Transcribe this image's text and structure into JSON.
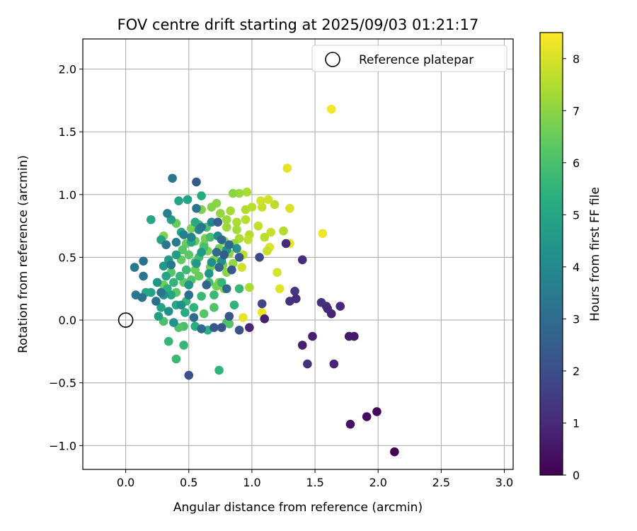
{
  "chart_data": {
    "type": "scatter",
    "title": "FOV centre drift starting at 2025/09/03 01:21:17",
    "xlabel": "Angular distance from reference (arcmin)",
    "ylabel": "Rotation from reference (arcmin)",
    "xlim": [
      -0.34,
      3.07
    ],
    "ylim": [
      -1.19,
      2.24
    ],
    "xticks": [
      "0.0",
      "0.5",
      "1.0",
      "1.5",
      "2.0",
      "2.5",
      "3.0"
    ],
    "yticks": [
      "−1.0",
      "−0.5",
      "0.0",
      "0.5",
      "1.0",
      "1.5",
      "2.0"
    ],
    "grid": true,
    "legend": {
      "position": "top-right",
      "entries": [
        "Reference platepar"
      ]
    },
    "colorbar": {
      "label": "Hours from first FF file",
      "range": [
        0,
        8.5
      ],
      "ticks": [
        "0",
        "1",
        "2",
        "3",
        "4",
        "5",
        "6",
        "7",
        "8"
      ],
      "colormap": "viridis"
    },
    "reference_point": {
      "x": 0.0,
      "y": 0.0
    },
    "points": [
      [
        1.63,
        1.68,
        8.4
      ],
      [
        1.28,
        1.21,
        8.2
      ],
      [
        1.56,
        0.69,
        8.3
      ],
      [
        1.22,
        0.25,
        8.1
      ],
      [
        1.2,
        0.38,
        8.0
      ],
      [
        1.14,
        0.58,
        8.1
      ],
      [
        1.3,
        0.61,
        8.2
      ],
      [
        1.3,
        0.89,
        8.0
      ],
      [
        0.93,
        0.02,
        8.2
      ],
      [
        1.08,
        0.06,
        8.3
      ],
      [
        1.18,
        0.92,
        7.6
      ],
      [
        1.25,
        0.71,
        7.5
      ],
      [
        1.13,
        0.96,
        7.9
      ],
      [
        1.07,
        0.95,
        7.9
      ],
      [
        0.96,
        1.02,
        7.4
      ],
      [
        0.9,
        1.01,
        7.2
      ],
      [
        0.85,
        1.01,
        7.0
      ],
      [
        1.0,
        0.9,
        7.6
      ],
      [
        1.08,
        0.9,
        7.8
      ],
      [
        0.95,
        0.88,
        7.5
      ],
      [
        0.83,
        0.87,
        7.3
      ],
      [
        0.72,
        0.93,
        7.0
      ],
      [
        0.68,
        0.9,
        6.9
      ],
      [
        0.6,
        0.88,
        6.8
      ],
      [
        0.75,
        0.85,
        7.1
      ],
      [
        0.8,
        0.8,
        7.2
      ],
      [
        0.88,
        0.78,
        7.4
      ],
      [
        0.95,
        0.8,
        7.6
      ],
      [
        1.05,
        0.75,
        7.7
      ],
      [
        1.15,
        0.7,
        7.8
      ],
      [
        1.1,
        0.66,
        7.6
      ],
      [
        0.98,
        0.68,
        7.5
      ],
      [
        0.9,
        0.65,
        7.4
      ],
      [
        0.8,
        0.74,
        7.2
      ],
      [
        0.88,
        0.72,
        7.3
      ],
      [
        0.93,
        0.52,
        7.6
      ],
      [
        0.97,
        0.64,
        7.7
      ],
      [
        1.12,
        0.55,
        7.8
      ],
      [
        0.92,
        0.42,
        7.9
      ],
      [
        0.98,
        0.26,
        7.4
      ],
      [
        0.85,
        0.45,
        7.1
      ],
      [
        0.8,
        0.38,
        7.0
      ],
      [
        0.78,
        0.25,
        6.9
      ],
      [
        0.74,
        0.3,
        7.0
      ],
      [
        0.7,
        0.48,
        6.9
      ],
      [
        0.65,
        0.55,
        6.8
      ],
      [
        0.63,
        0.65,
        6.7
      ],
      [
        0.58,
        0.72,
        6.6
      ],
      [
        0.52,
        0.73,
        6.7
      ],
      [
        0.48,
        0.61,
        6.5
      ],
      [
        0.44,
        0.48,
        6.4
      ],
      [
        0.4,
        0.77,
        6.5
      ],
      [
        0.36,
        0.38,
        6.2
      ],
      [
        0.3,
        0.67,
        6.8
      ],
      [
        0.3,
        0.28,
        6.6
      ],
      [
        0.4,
        0.22,
        6.3
      ],
      [
        0.46,
        0.3,
        6.4
      ],
      [
        0.55,
        0.4,
        6.6
      ],
      [
        0.58,
        0.35,
        6.5
      ],
      [
        0.62,
        0.6,
        6.6
      ],
      [
        0.67,
        0.42,
        6.6
      ],
      [
        0.72,
        0.27,
        6.7
      ],
      [
        0.77,
        0.44,
        6.8
      ],
      [
        0.82,
        0.53,
        7.0
      ],
      [
        0.86,
        0.61,
        7.1
      ],
      [
        0.78,
        0.63,
        6.9
      ],
      [
        0.74,
        0.57,
        6.7
      ],
      [
        0.55,
        0.63,
        6.5
      ],
      [
        0.5,
        0.52,
        6.3
      ],
      [
        0.45,
        0.56,
        6.2
      ],
      [
        0.52,
        0.32,
        6.1
      ],
      [
        0.62,
        0.05,
        6.2
      ],
      [
        0.7,
        0.1,
        6.1
      ],
      [
        0.8,
        -0.02,
        6.0
      ],
      [
        0.82,
        -0.03,
        6.1
      ],
      [
        0.46,
        -0.05,
        6.0
      ],
      [
        0.42,
        -0.06,
        6.1
      ],
      [
        0.3,
        -0.01,
        6.0
      ],
      [
        0.34,
        -0.17,
        5.6
      ],
      [
        0.4,
        -0.31,
        5.7
      ],
      [
        0.46,
        -0.2,
        5.6
      ],
      [
        0.58,
        0.76,
        5.8
      ],
      [
        0.62,
        0.58,
        5.9
      ],
      [
        0.64,
        0.74,
        6.0
      ],
      [
        0.67,
        0.66,
        5.9
      ],
      [
        0.58,
        0.5,
        5.8
      ],
      [
        0.55,
        0.46,
        5.9
      ],
      [
        0.48,
        0.4,
        5.7
      ],
      [
        0.43,
        0.35,
        5.6
      ],
      [
        0.38,
        0.3,
        5.5
      ],
      [
        0.33,
        0.25,
        5.4
      ],
      [
        0.48,
        0.15,
        5.6
      ],
      [
        0.54,
        0.1,
        5.5
      ],
      [
        0.6,
        0.19,
        5.7
      ],
      [
        0.66,
        0.3,
        5.8
      ],
      [
        0.7,
        0.2,
        5.7
      ],
      [
        0.76,
        0.3,
        5.6
      ],
      [
        0.86,
        0.12,
        5.5
      ],
      [
        0.9,
        0.25,
        5.6
      ],
      [
        0.74,
        -0.4,
        5.5
      ],
      [
        0.65,
        -0.08,
        5.4
      ],
      [
        0.55,
        -0.05,
        5.3
      ],
      [
        0.47,
        0.06,
        5.2
      ],
      [
        0.4,
        0.12,
        5.1
      ],
      [
        0.36,
        0.2,
        5.0
      ],
      [
        0.32,
        0.35,
        5.0
      ],
      [
        0.28,
        0.1,
        4.9
      ],
      [
        0.26,
        0.03,
        4.8
      ],
      [
        0.2,
        0.22,
        4.9
      ],
      [
        0.16,
        0.22,
        5.0
      ],
      [
        0.2,
        0.8,
        5.0
      ],
      [
        0.28,
        0.64,
        4.8
      ],
      [
        0.4,
        0.52,
        4.7
      ],
      [
        0.42,
        0.95,
        4.9
      ],
      [
        0.49,
        0.96,
        5.0
      ],
      [
        0.55,
        0.78,
        5.1
      ],
      [
        0.6,
        0.99,
        5.2
      ],
      [
        0.52,
        0.62,
        5.1
      ],
      [
        0.44,
        0.7,
        4.9
      ],
      [
        0.36,
        0.8,
        4.8
      ],
      [
        0.34,
        0.48,
        4.6
      ],
      [
        0.3,
        0.43,
        4.5
      ],
      [
        0.25,
        0.3,
        4.4
      ],
      [
        0.3,
        0.2,
        4.4
      ],
      [
        0.34,
        0.07,
        4.3
      ],
      [
        0.38,
        -0.02,
        4.2
      ],
      [
        0.44,
        0.12,
        4.3
      ],
      [
        0.5,
        0.28,
        4.4
      ],
      [
        0.56,
        0.45,
        4.5
      ],
      [
        0.6,
        0.54,
        4.5
      ],
      [
        0.66,
        0.37,
        4.4
      ],
      [
        0.68,
        0.46,
        4.3
      ],
      [
        0.76,
        0.47,
        4.2
      ],
      [
        0.8,
        0.56,
        4.3
      ],
      [
        0.88,
        0.57,
        4.2
      ],
      [
        0.73,
        0.67,
        4.0
      ],
      [
        0.68,
        0.78,
        3.9
      ],
      [
        0.58,
        0.72,
        3.8
      ],
      [
        0.52,
        0.66,
        3.7
      ],
      [
        0.46,
        0.68,
        3.6
      ],
      [
        0.4,
        0.62,
        3.5
      ],
      [
        0.33,
        0.85,
        3.6
      ],
      [
        0.37,
        1.13,
        3.4
      ],
      [
        0.56,
        0.89,
        3.2
      ],
      [
        0.6,
        0.74,
        3.3
      ],
      [
        0.36,
        0.44,
        3.4
      ],
      [
        0.32,
        0.6,
        3.3
      ],
      [
        0.28,
        0.22,
        3.2
      ],
      [
        0.24,
        0.15,
        3.1
      ],
      [
        0.14,
        0.47,
        3.2
      ],
      [
        0.14,
        0.35,
        3.3
      ],
      [
        0.07,
        0.42,
        3.4
      ],
      [
        0.08,
        0.2,
        3.3
      ],
      [
        0.13,
        0.18,
        3.2
      ],
      [
        0.5,
        0.2,
        3.1
      ],
      [
        0.54,
        0.02,
        3.0
      ],
      [
        0.6,
        -0.07,
        2.9
      ],
      [
        0.72,
        0.54,
        3.0
      ],
      [
        0.82,
        0.6,
        2.9
      ],
      [
        0.76,
        0.64,
        2.8
      ],
      [
        0.8,
        0.25,
        2.9
      ],
      [
        0.74,
        0.42,
        2.8
      ],
      [
        0.64,
        0.28,
        2.7
      ],
      [
        0.56,
        1.1,
        2.4
      ],
      [
        0.73,
        0.78,
        2.5
      ],
      [
        0.78,
        0.52,
        2.4
      ],
      [
        0.84,
        0.4,
        2.3
      ],
      [
        0.9,
        0.5,
        2.4
      ],
      [
        0.82,
        0.03,
        2.3
      ],
      [
        0.76,
        -0.06,
        2.2
      ],
      [
        0.7,
        -0.06,
        2.3
      ],
      [
        0.5,
        -0.44,
        2.1
      ],
      [
        0.9,
        -0.08,
        2.2
      ],
      [
        1.06,
        0.5,
        1.9
      ],
      [
        1.08,
        0.13,
        1.8
      ],
      [
        1.27,
        0.61,
        1.0
      ],
      [
        1.4,
        0.48,
        1.1
      ],
      [
        1.34,
        0.23,
        1.3
      ],
      [
        1.3,
        0.15,
        1.2
      ],
      [
        1.35,
        0.17,
        1.1
      ],
      [
        1.55,
        0.14,
        1.2
      ],
      [
        1.59,
        0.11,
        1.1
      ],
      [
        1.6,
        0.09,
        1.0
      ],
      [
        1.63,
        0.05,
        0.9
      ],
      [
        1.7,
        0.11,
        1.0
      ],
      [
        1.1,
        0.01,
        0.8
      ],
      [
        0.98,
        -0.06,
        0.9
      ],
      [
        1.4,
        -0.2,
        0.7
      ],
      [
        1.48,
        -0.13,
        0.8
      ],
      [
        1.44,
        -0.35,
        1.2
      ],
      [
        1.65,
        -0.35,
        0.9
      ],
      [
        1.77,
        -0.13,
        0.6
      ],
      [
        1.81,
        -0.13,
        0.6
      ],
      [
        1.78,
        -0.83,
        0.4
      ],
      [
        1.91,
        -0.77,
        0.3
      ],
      [
        1.99,
        -0.73,
        0.2
      ],
      [
        2.13,
        -1.05,
        0.0
      ]
    ]
  }
}
